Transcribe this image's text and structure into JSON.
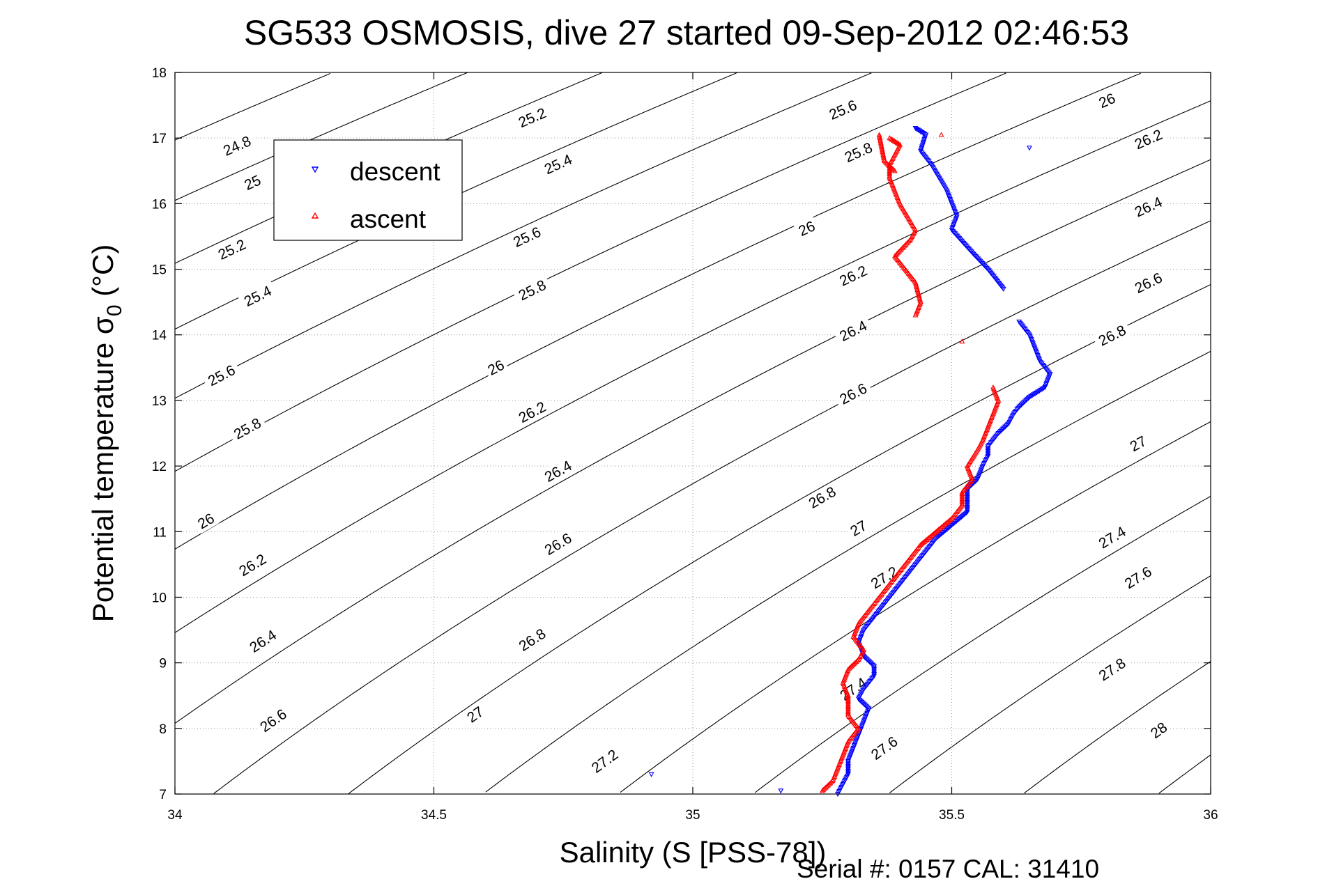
{
  "chart_data": {
    "type": "scatter",
    "title": "SG533 OSMOSIS, dive 27 started 09-Sep-2012 02:46:53",
    "xlabel": "Salinity (S [PSS-78])",
    "ylabel_main": "Potential temperature σ",
    "ylabel_sub": "0",
    "ylabel_unit": " (°C)",
    "xlim": [
      34,
      36
    ],
    "ylim": [
      7,
      18
    ],
    "x_ticks": [
      34,
      34.5,
      35,
      35.5,
      36
    ],
    "x_tick_labels": [
      "34",
      "34.5",
      "35",
      "35.5",
      "36"
    ],
    "y_ticks": [
      7,
      8,
      9,
      10,
      11,
      12,
      13,
      14,
      15,
      16,
      17,
      18
    ],
    "y_tick_labels": [
      "7",
      "8",
      "9",
      "10",
      "11",
      "12",
      "13",
      "14",
      "15",
      "16",
      "17",
      "18"
    ],
    "grid": true,
    "legend_position": "top-left",
    "density_contours": [
      24.8,
      25,
      25.2,
      25.4,
      25.6,
      25.8,
      26,
      26.2,
      26.4,
      26.6,
      26.8,
      27,
      27.2,
      27.4,
      27.6,
      27.8,
      28
    ],
    "contour_labels": [
      {
        "text": "24.8",
        "s": 34.12,
        "t": 16.88
      },
      {
        "text": "25",
        "s": 34.15,
        "t": 16.32
      },
      {
        "text": "25.2",
        "s": 34.11,
        "t": 15.3
      },
      {
        "text": "25.4",
        "s": 34.16,
        "t": 14.59
      },
      {
        "text": "25.6",
        "s": 34.09,
        "t": 13.38
      },
      {
        "text": "25.8",
        "s": 34.14,
        "t": 12.57
      },
      {
        "text": "26",
        "s": 34.06,
        "t": 11.16
      },
      {
        "text": "26.2",
        "s": 34.15,
        "t": 10.49
      },
      {
        "text": "26.4",
        "s": 34.17,
        "t": 9.33
      },
      {
        "text": "26.6",
        "s": 34.19,
        "t": 8.12
      },
      {
        "text": "25.2",
        "s": 34.69,
        "t": 17.31
      },
      {
        "text": "25.4",
        "s": 34.74,
        "t": 16.6
      },
      {
        "text": "25.6",
        "s": 34.68,
        "t": 15.49
      },
      {
        "text": "25.8",
        "s": 34.69,
        "t": 14.68
      },
      {
        "text": "26",
        "s": 34.62,
        "t": 13.5
      },
      {
        "text": "26.2",
        "s": 34.69,
        "t": 12.82
      },
      {
        "text": "26.4",
        "s": 34.74,
        "t": 11.92
      },
      {
        "text": "26.6",
        "s": 34.74,
        "t": 10.81
      },
      {
        "text": "26.8",
        "s": 34.69,
        "t": 9.35
      },
      {
        "text": "27",
        "s": 34.58,
        "t": 8.21
      },
      {
        "text": "27.2",
        "s": 34.83,
        "t": 7.5
      },
      {
        "text": "25.6",
        "s": 35.29,
        "t": 17.43
      },
      {
        "text": "25.8",
        "s": 35.32,
        "t": 16.78
      },
      {
        "text": "26",
        "s": 35.22,
        "t": 15.62
      },
      {
        "text": "26.2",
        "s": 35.31,
        "t": 14.9
      },
      {
        "text": "26.4",
        "s": 35.31,
        "t": 14.06
      },
      {
        "text": "26.6",
        "s": 35.31,
        "t": 13.1
      },
      {
        "text": "26.8",
        "s": 35.25,
        "t": 11.52
      },
      {
        "text": "27",
        "s": 35.32,
        "t": 11.05
      },
      {
        "text": "27.2",
        "s": 35.37,
        "t": 10.3
      },
      {
        "text": "27.4",
        "s": 35.31,
        "t": 8.6
      },
      {
        "text": "27.6",
        "s": 35.37,
        "t": 7.7
      },
      {
        "text": "26",
        "s": 35.8,
        "t": 17.57
      },
      {
        "text": "26.2",
        "s": 35.88,
        "t": 16.98
      },
      {
        "text": "26.4",
        "s": 35.88,
        "t": 15.95
      },
      {
        "text": "26.6",
        "s": 35.88,
        "t": 14.79
      },
      {
        "text": "26.8",
        "s": 35.81,
        "t": 13.99
      },
      {
        "text": "27",
        "s": 35.86,
        "t": 12.34
      },
      {
        "text": "27.4",
        "s": 35.81,
        "t": 10.91
      },
      {
        "text": "27.6",
        "s": 35.86,
        "t": 10.3
      },
      {
        "text": "27.8",
        "s": 35.81,
        "t": 8.9
      },
      {
        "text": "28",
        "s": 35.9,
        "t": 7.97
      }
    ],
    "series": [
      {
        "name": "descent",
        "color": "#0000ff",
        "marker": "triangle-down",
        "points": [
          [
            35.28,
            7.0
          ],
          [
            35.29,
            7.15
          ],
          [
            35.3,
            7.3
          ],
          [
            35.3,
            7.5
          ],
          [
            35.31,
            7.7
          ],
          [
            35.32,
            7.9
          ],
          [
            35.33,
            8.1
          ],
          [
            35.34,
            8.3
          ],
          [
            35.32,
            8.45
          ],
          [
            35.33,
            8.6
          ],
          [
            35.35,
            8.8
          ],
          [
            35.35,
            8.95
          ],
          [
            35.33,
            9.1
          ],
          [
            35.32,
            9.3
          ],
          [
            35.33,
            9.5
          ],
          [
            35.35,
            9.7
          ],
          [
            35.37,
            9.9
          ],
          [
            35.39,
            10.1
          ],
          [
            35.41,
            10.3
          ],
          [
            35.43,
            10.5
          ],
          [
            35.45,
            10.7
          ],
          [
            35.47,
            10.9
          ],
          [
            35.5,
            11.1
          ],
          [
            35.53,
            11.3
          ],
          [
            35.53,
            11.5
          ],
          [
            35.53,
            11.65
          ],
          [
            35.55,
            11.8
          ],
          [
            35.56,
            12.0
          ],
          [
            35.57,
            12.15
          ],
          [
            35.57,
            12.3
          ],
          [
            35.59,
            12.5
          ],
          [
            35.61,
            12.65
          ],
          [
            35.62,
            12.8
          ],
          [
            35.63,
            12.9
          ],
          [
            35.65,
            13.05
          ],
          [
            35.68,
            13.2
          ],
          [
            35.69,
            13.4
          ],
          [
            35.67,
            13.6
          ],
          [
            35.66,
            13.8
          ],
          [
            35.65,
            14.0
          ],
          [
            35.63,
            14.2
          ],
          [
            35.6,
            14.7
          ],
          [
            35.57,
            15.0
          ],
          [
            35.54,
            15.25
          ],
          [
            35.5,
            15.6
          ],
          [
            35.51,
            15.8
          ],
          [
            35.49,
            16.2
          ],
          [
            35.46,
            16.6
          ],
          [
            35.44,
            16.8
          ],
          [
            35.45,
            17.05
          ],
          [
            35.43,
            17.15
          ],
          [
            35.65,
            16.85
          ],
          [
            34.92,
            7.3
          ],
          [
            35.17,
            7.05
          ]
        ]
      },
      {
        "name": "ascent",
        "color": "#ff0000",
        "marker": "triangle-up",
        "points": [
          [
            35.25,
            7.05
          ],
          [
            35.27,
            7.2
          ],
          [
            35.28,
            7.4
          ],
          [
            35.29,
            7.6
          ],
          [
            35.3,
            7.8
          ],
          [
            35.32,
            8.0
          ],
          [
            35.3,
            8.2
          ],
          [
            35.3,
            8.35
          ],
          [
            35.3,
            8.5
          ],
          [
            35.29,
            8.7
          ],
          [
            35.3,
            8.9
          ],
          [
            35.32,
            9.05
          ],
          [
            35.33,
            9.2
          ],
          [
            35.31,
            9.4
          ],
          [
            35.32,
            9.6
          ],
          [
            35.34,
            9.8
          ],
          [
            35.36,
            10.0
          ],
          [
            35.38,
            10.2
          ],
          [
            35.4,
            10.4
          ],
          [
            35.42,
            10.6
          ],
          [
            35.44,
            10.8
          ],
          [
            35.47,
            11.0
          ],
          [
            35.5,
            11.2
          ],
          [
            35.52,
            11.4
          ],
          [
            35.52,
            11.6
          ],
          [
            35.54,
            11.8
          ],
          [
            35.53,
            12.0
          ],
          [
            35.55,
            12.25
          ],
          [
            35.56,
            12.4
          ],
          [
            35.57,
            12.6
          ],
          [
            35.58,
            12.8
          ],
          [
            35.59,
            13.0
          ],
          [
            35.58,
            13.2
          ],
          [
            35.52,
            13.9
          ],
          [
            35.43,
            14.3
          ],
          [
            35.44,
            14.5
          ],
          [
            35.43,
            14.8
          ],
          [
            35.39,
            15.2
          ],
          [
            35.42,
            15.45
          ],
          [
            35.43,
            15.6
          ],
          [
            35.4,
            16.0
          ],
          [
            35.38,
            16.4
          ],
          [
            35.38,
            16.6
          ],
          [
            35.4,
            16.9
          ],
          [
            35.38,
            17.0
          ],
          [
            35.48,
            17.05
          ],
          [
            35.36,
            17.05
          ],
          [
            35.37,
            16.65
          ],
          [
            35.39,
            16.5
          ]
        ]
      }
    ],
    "serial_text": "Serial #: 0157  CAL: 31410"
  }
}
